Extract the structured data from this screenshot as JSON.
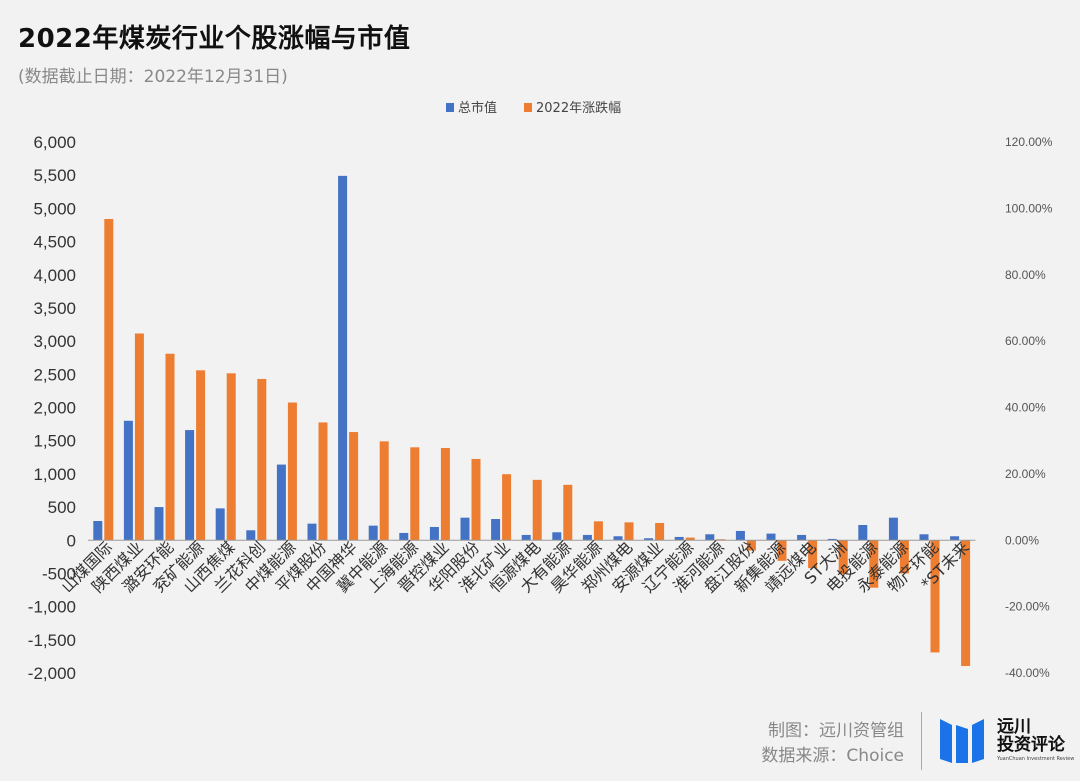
{
  "title": "2022年煤炭行业个股涨幅与市值",
  "subtitle": "(数据截止日期：2022年12月31日)",
  "credits": {
    "line1": "制图：远川资管组",
    "line2": "数据来源：Choice"
  },
  "logo": {
    "name_line1": "远川",
    "name_line2": "投资评论",
    "name_en": "YuanChuan Investment Review"
  },
  "colors": {
    "market_cap": "#4472c4",
    "change": "#ed7d31",
    "background": "#f2f2f2",
    "logo": "#1a73e8"
  },
  "chart_data": {
    "type": "bar",
    "legend_position": "top",
    "grid": false,
    "categories": [
      "山煤国际",
      "陕西煤业",
      "潞安环能",
      "兖矿能源",
      "山西焦煤",
      "兰花科创",
      "中煤能源",
      "平煤股份",
      "中国神华",
      "冀中能源",
      "上海能源",
      "晋控煤业",
      "华阳股份",
      "淮北矿业",
      "恒源煤电",
      "大有能源",
      "昊华能源",
      "郑州煤电",
      "安源煤业",
      "辽宁能源",
      "淮河能源",
      "盘江股份",
      "新集能源",
      "靖远煤电",
      "ST大洲",
      "电投能源",
      "永泰能源",
      "物产环能",
      "*ST未来"
    ],
    "series": [
      {
        "name": "总市值",
        "axis": "left",
        "values": [
          290,
          1800,
          500,
          1660,
          480,
          150,
          1140,
          250,
          5490,
          220,
          110,
          200,
          340,
          320,
          80,
          120,
          80,
          60,
          30,
          50,
          90,
          140,
          100,
          80,
          20,
          230,
          340,
          90,
          60
        ]
      },
      {
        "name": "2022年涨跌幅",
        "axis": "right",
        "values": [
          96.8,
          62.3,
          56.2,
          51.2,
          50.3,
          48.6,
          41.5,
          35.5,
          32.6,
          29.8,
          28.0,
          27.8,
          24.5,
          19.9,
          18.2,
          16.7,
          5.7,
          5.4,
          5.2,
          0.8,
          0.3,
          -3.1,
          -6.2,
          -8.4,
          -10.2,
          -14.3,
          -10.0,
          -33.8,
          -37.9
        ]
      }
    ],
    "left_axis": {
      "ylim": [
        -2000,
        6000
      ],
      "ticks": [
        6000,
        5500,
        5000,
        4500,
        4000,
        3500,
        3000,
        2500,
        2000,
        1500,
        1000,
        500,
        0,
        -500,
        -1000,
        -1500,
        -2000
      ],
      "tick_labels": [
        "6,000",
        "5,500",
        "5,000",
        "4,500",
        "4,000",
        "3,500",
        "3,000",
        "2,500",
        "2,000",
        "1,500",
        "1,000",
        "500",
        "0",
        "-500",
        "-1,000",
        "-1,500",
        "-2,000"
      ]
    },
    "right_axis": {
      "ylim": [
        -40,
        120
      ],
      "ticks": [
        120,
        100,
        80,
        60,
        40,
        20,
        0,
        -20,
        -40
      ],
      "tick_labels": [
        "120.00%",
        "100.00%",
        "80.00%",
        "60.00%",
        "40.00%",
        "20.00%",
        "0.00%",
        "-20.00%",
        "-40.00%"
      ]
    }
  }
}
